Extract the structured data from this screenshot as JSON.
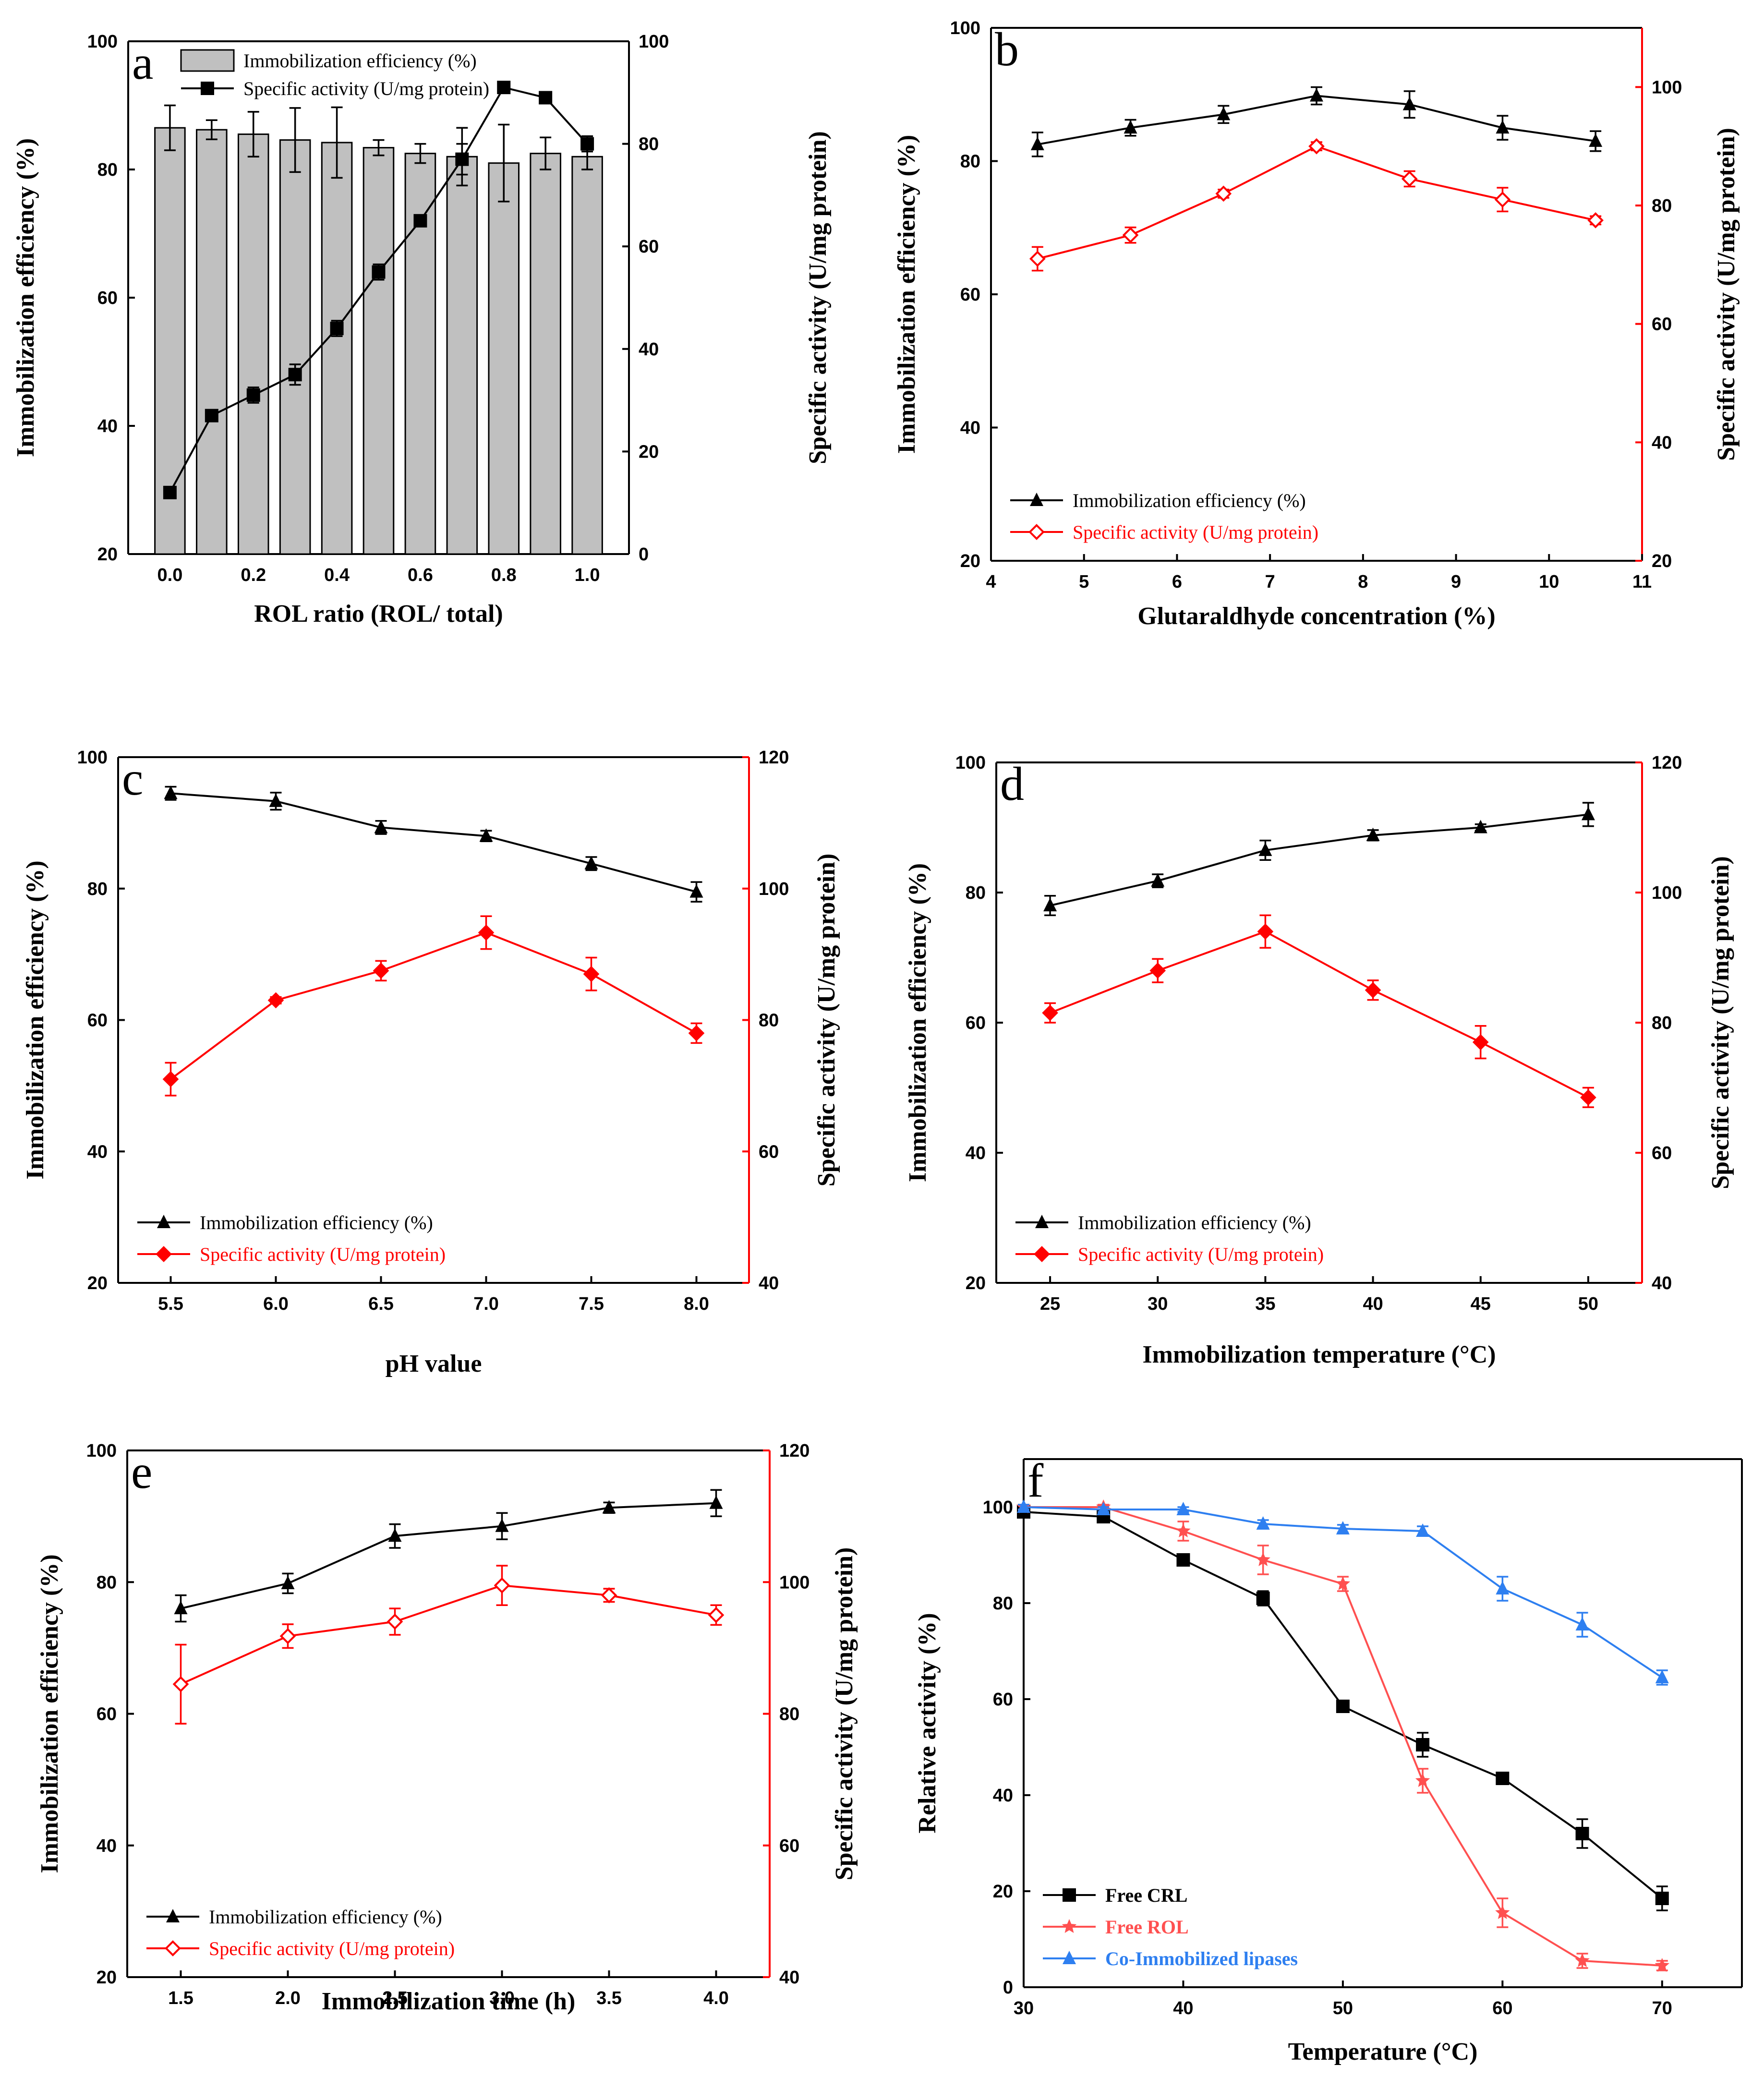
{
  "chart_data": [
    {
      "id": "a",
      "type": "bar+line",
      "letter": "a",
      "xlabel": "ROL ratio (ROL/ total)",
      "ylabel_left": "Immobilization efficiency (%)",
      "ylabel_right": "Specific activity (U/mg protein)",
      "xlim": [
        -0.1,
        1.1
      ],
      "xticks": [
        "0.0",
        "0.2",
        "0.4",
        "0.6",
        "0.8",
        "1.0"
      ],
      "ylim_left": [
        20,
        100
      ],
      "yticks_left": [
        "20",
        "40",
        "60",
        "80",
        "100"
      ],
      "ylim_right": [
        0,
        100
      ],
      "yticks_right": [
        "0",
        "20",
        "40",
        "60",
        "80",
        "100"
      ],
      "x": [
        0,
        0.1,
        0.2,
        0.3,
        0.4,
        0.5,
        0.6,
        0.7,
        0.8,
        0.9,
        1.0
      ],
      "series": [
        {
          "name": "Immobilization efficiency (%)",
          "axis": "left",
          "style": "bar",
          "color": "#c0c0c0",
          "values": [
            86.5,
            86.2,
            85.5,
            84.6,
            84.2,
            83.4,
            82.5,
            82.0,
            81.0,
            82.5,
            82.0
          ],
          "errors": [
            3.5,
            1.5,
            3.5,
            5.0,
            5.5,
            1.2,
            1.5,
            4.5,
            6.0,
            2.5,
            2.0
          ]
        },
        {
          "name": "Specific activity (U/mg protein)",
          "axis": "right",
          "style": "line-square",
          "color": "#000000",
          "values": [
            12,
            27,
            31,
            35,
            44,
            55,
            65,
            77,
            91,
            89,
            80
          ],
          "errors": [
            0.5,
            1,
            1.5,
            2,
            1.5,
            1.5,
            1,
            3,
            1,
            1,
            1.5
          ]
        }
      ]
    },
    {
      "id": "b",
      "type": "line",
      "letter": "b",
      "xlabel": "Glutaraldhyde concentration (%)",
      "ylabel_left": "Immobilization efficiency (%)",
      "ylabel_right": "Specific activity (U/mg protein)",
      "xlim": [
        4,
        11
      ],
      "xticks": [
        "4",
        "5",
        "6",
        "7",
        "8",
        "9",
        "10",
        "11"
      ],
      "ylim_left": [
        20,
        100
      ],
      "yticks_left": [
        "20",
        "40",
        "60",
        "80",
        "100"
      ],
      "ylim_right": [
        20,
        110
      ],
      "yticks_right": [
        "20",
        "40",
        "60",
        "80",
        "100"
      ],
      "x": [
        4.5,
        5.5,
        6.5,
        7.5,
        8.5,
        9.5,
        10.5
      ],
      "series": [
        {
          "name": "Immobilization efficiency (%)",
          "axis": "left",
          "style": "line-triangle",
          "color": "#000000",
          "values": [
            82.5,
            85.0,
            87.0,
            89.8,
            88.5,
            85.0,
            83.0
          ],
          "errors": [
            1.8,
            1.2,
            1.3,
            1.3,
            2.0,
            1.8,
            1.5
          ]
        },
        {
          "name": "Specific activity (U/mg protein)",
          "axis": "right",
          "style": "line-diamond-open",
          "color": "#ff0000",
          "values": [
            71,
            75,
            82,
            90,
            84.5,
            81,
            77.5
          ],
          "errors": [
            2,
            1.3,
            0.7,
            0.7,
            1.3,
            2,
            0.7
          ]
        }
      ]
    },
    {
      "id": "c",
      "type": "line",
      "letter": "c",
      "xlabel": "pH value",
      "ylabel_left": "Immobilization efficiency (%)",
      "ylabel_right": "Specific activity (U/mg protein)",
      "xlim": [
        5.25,
        8.25
      ],
      "xticks": [
        "5.5",
        "6.0",
        "6.5",
        "7.0",
        "7.5",
        "8.0"
      ],
      "ylim_left": [
        20,
        100
      ],
      "yticks_left": [
        "20",
        "40",
        "60",
        "80",
        "100"
      ],
      "ylim_right": [
        40,
        120
      ],
      "yticks_right": [
        "40",
        "60",
        "80",
        "100",
        "120"
      ],
      "x": [
        5.5,
        6.0,
        6.5,
        7.0,
        7.5,
        8.0
      ],
      "series": [
        {
          "name": "Immobilization efficiency (%)",
          "axis": "left",
          "style": "line-triangle",
          "color": "#000000",
          "values": [
            94.5,
            93.3,
            89.3,
            88.0,
            83.8,
            79.5
          ],
          "errors": [
            1,
            1.3,
            1,
            0.8,
            1,
            1.5
          ]
        },
        {
          "name": "Specific activity (U/mg protein)",
          "axis": "right",
          "style": "line-diamond",
          "color": "#ff0000",
          "values": [
            71,
            83,
            87.5,
            93.3,
            87,
            78
          ],
          "errors": [
            2.5,
            0.5,
            1.5,
            2.5,
            2.5,
            1.5
          ]
        }
      ]
    },
    {
      "id": "d",
      "type": "line",
      "letter": "d",
      "xlabel": "Immobilization temperature (°C)",
      "ylabel_left": "Immobilization efficiency (%)",
      "ylabel_right": "Specific activity (U/mg protein)",
      "xlim": [
        22.5,
        52.5
      ],
      "xticks": [
        "25",
        "30",
        "35",
        "40",
        "45",
        "50"
      ],
      "ylim_left": [
        20,
        100
      ],
      "yticks_left": [
        "20",
        "40",
        "60",
        "80",
        "100"
      ],
      "ylim_right": [
        40,
        120
      ],
      "yticks_right": [
        "40",
        "60",
        "80",
        "100",
        "120"
      ],
      "x": [
        25,
        30,
        35,
        40,
        45,
        50
      ],
      "series": [
        {
          "name": "Immobilization efficiency (%)",
          "axis": "left",
          "style": "line-triangle",
          "color": "#000000",
          "values": [
            78,
            81.8,
            86.5,
            88.8,
            90,
            92
          ],
          "errors": [
            1.5,
            1,
            1.5,
            0.8,
            0.5,
            1.8
          ]
        },
        {
          "name": "Specific activity (U/mg protein)",
          "axis": "right",
          "style": "line-diamond",
          "color": "#ff0000",
          "values": [
            81.5,
            88,
            94,
            85,
            77,
            68.5
          ],
          "errors": [
            1.5,
            1.8,
            2.5,
            1.5,
            2.5,
            1.5
          ]
        }
      ]
    },
    {
      "id": "e",
      "type": "line",
      "letter": "e",
      "xlabel": "Immobilization time (h)",
      "ylabel_left": "Immobilization efficiency (%)",
      "ylabel_right": "Specific activity (U/mg protein)",
      "xlim": [
        1.25,
        4.25
      ],
      "xticks": [
        "1.5",
        "2.0",
        "2.5",
        "3.0",
        "3.5",
        "4.0"
      ],
      "ylim_left": [
        20,
        100
      ],
      "yticks_left": [
        "20",
        "40",
        "60",
        "80",
        "100"
      ],
      "ylim_right": [
        40,
        120
      ],
      "yticks_right": [
        "40",
        "60",
        "80",
        "100",
        "120"
      ],
      "x": [
        1.5,
        2.0,
        2.5,
        3.0,
        3.5,
        4.0
      ],
      "series": [
        {
          "name": "Immobilization efficiency (%)",
          "axis": "left",
          "style": "line-triangle",
          "color": "#000000",
          "values": [
            76,
            79.8,
            87,
            88.5,
            91.3,
            92
          ],
          "errors": [
            2,
            1.5,
            1.8,
            2,
            0.8,
            2
          ]
        },
        {
          "name": "Specific activity (U/mg protein)",
          "axis": "right",
          "style": "line-diamond-open",
          "color": "#ff0000",
          "values": [
            84.5,
            91.8,
            94,
            99.5,
            98,
            95
          ],
          "errors": [
            6,
            1.8,
            2,
            3,
            1,
            1.5
          ]
        }
      ]
    },
    {
      "id": "f",
      "type": "line",
      "letter": "f",
      "xlabel": "Temperature (°C)",
      "ylabel_left": "Relative activity (%)",
      "xlim": [
        30,
        75
      ],
      "xticks": [
        "30",
        "40",
        "50",
        "60",
        "70"
      ],
      "ylim_left": [
        0,
        110
      ],
      "yticks_left": [
        "0",
        "20",
        "40",
        "60",
        "80",
        "100"
      ],
      "x": [
        30,
        35,
        40,
        45,
        50,
        55,
        60,
        65,
        70
      ],
      "series": [
        {
          "name": "Free CRL",
          "axis": "left",
          "style": "line-square",
          "color": "#000000",
          "values": [
            99,
            98,
            89,
            81,
            58.5,
            50.5,
            43.5,
            32,
            18.5
          ],
          "errors": [
            0.5,
            1,
            1,
            1.5,
            0.5,
            2.5,
            0.8,
            3,
            2.5
          ]
        },
        {
          "name": "Free ROL",
          "axis": "left",
          "style": "line-star",
          "color": "#ff5050",
          "values": [
            100,
            100,
            95,
            89,
            84,
            43,
            15.5,
            5.5,
            4.5
          ],
          "errors": [
            0.5,
            0.5,
            2,
            3,
            1.5,
            2.5,
            3,
            1.5,
            1
          ]
        },
        {
          "name": "Co-Immobilized lipases",
          "axis": "left",
          "style": "line-triangle",
          "color": "#2e7ff0",
          "values": [
            100,
            99.5,
            99.5,
            96.5,
            95.5,
            95,
            83,
            75.5,
            64.5
          ],
          "errors": [
            0.5,
            0.5,
            0.5,
            0.8,
            0.8,
            1,
            2.5,
            2.5,
            1.5
          ]
        }
      ]
    }
  ]
}
